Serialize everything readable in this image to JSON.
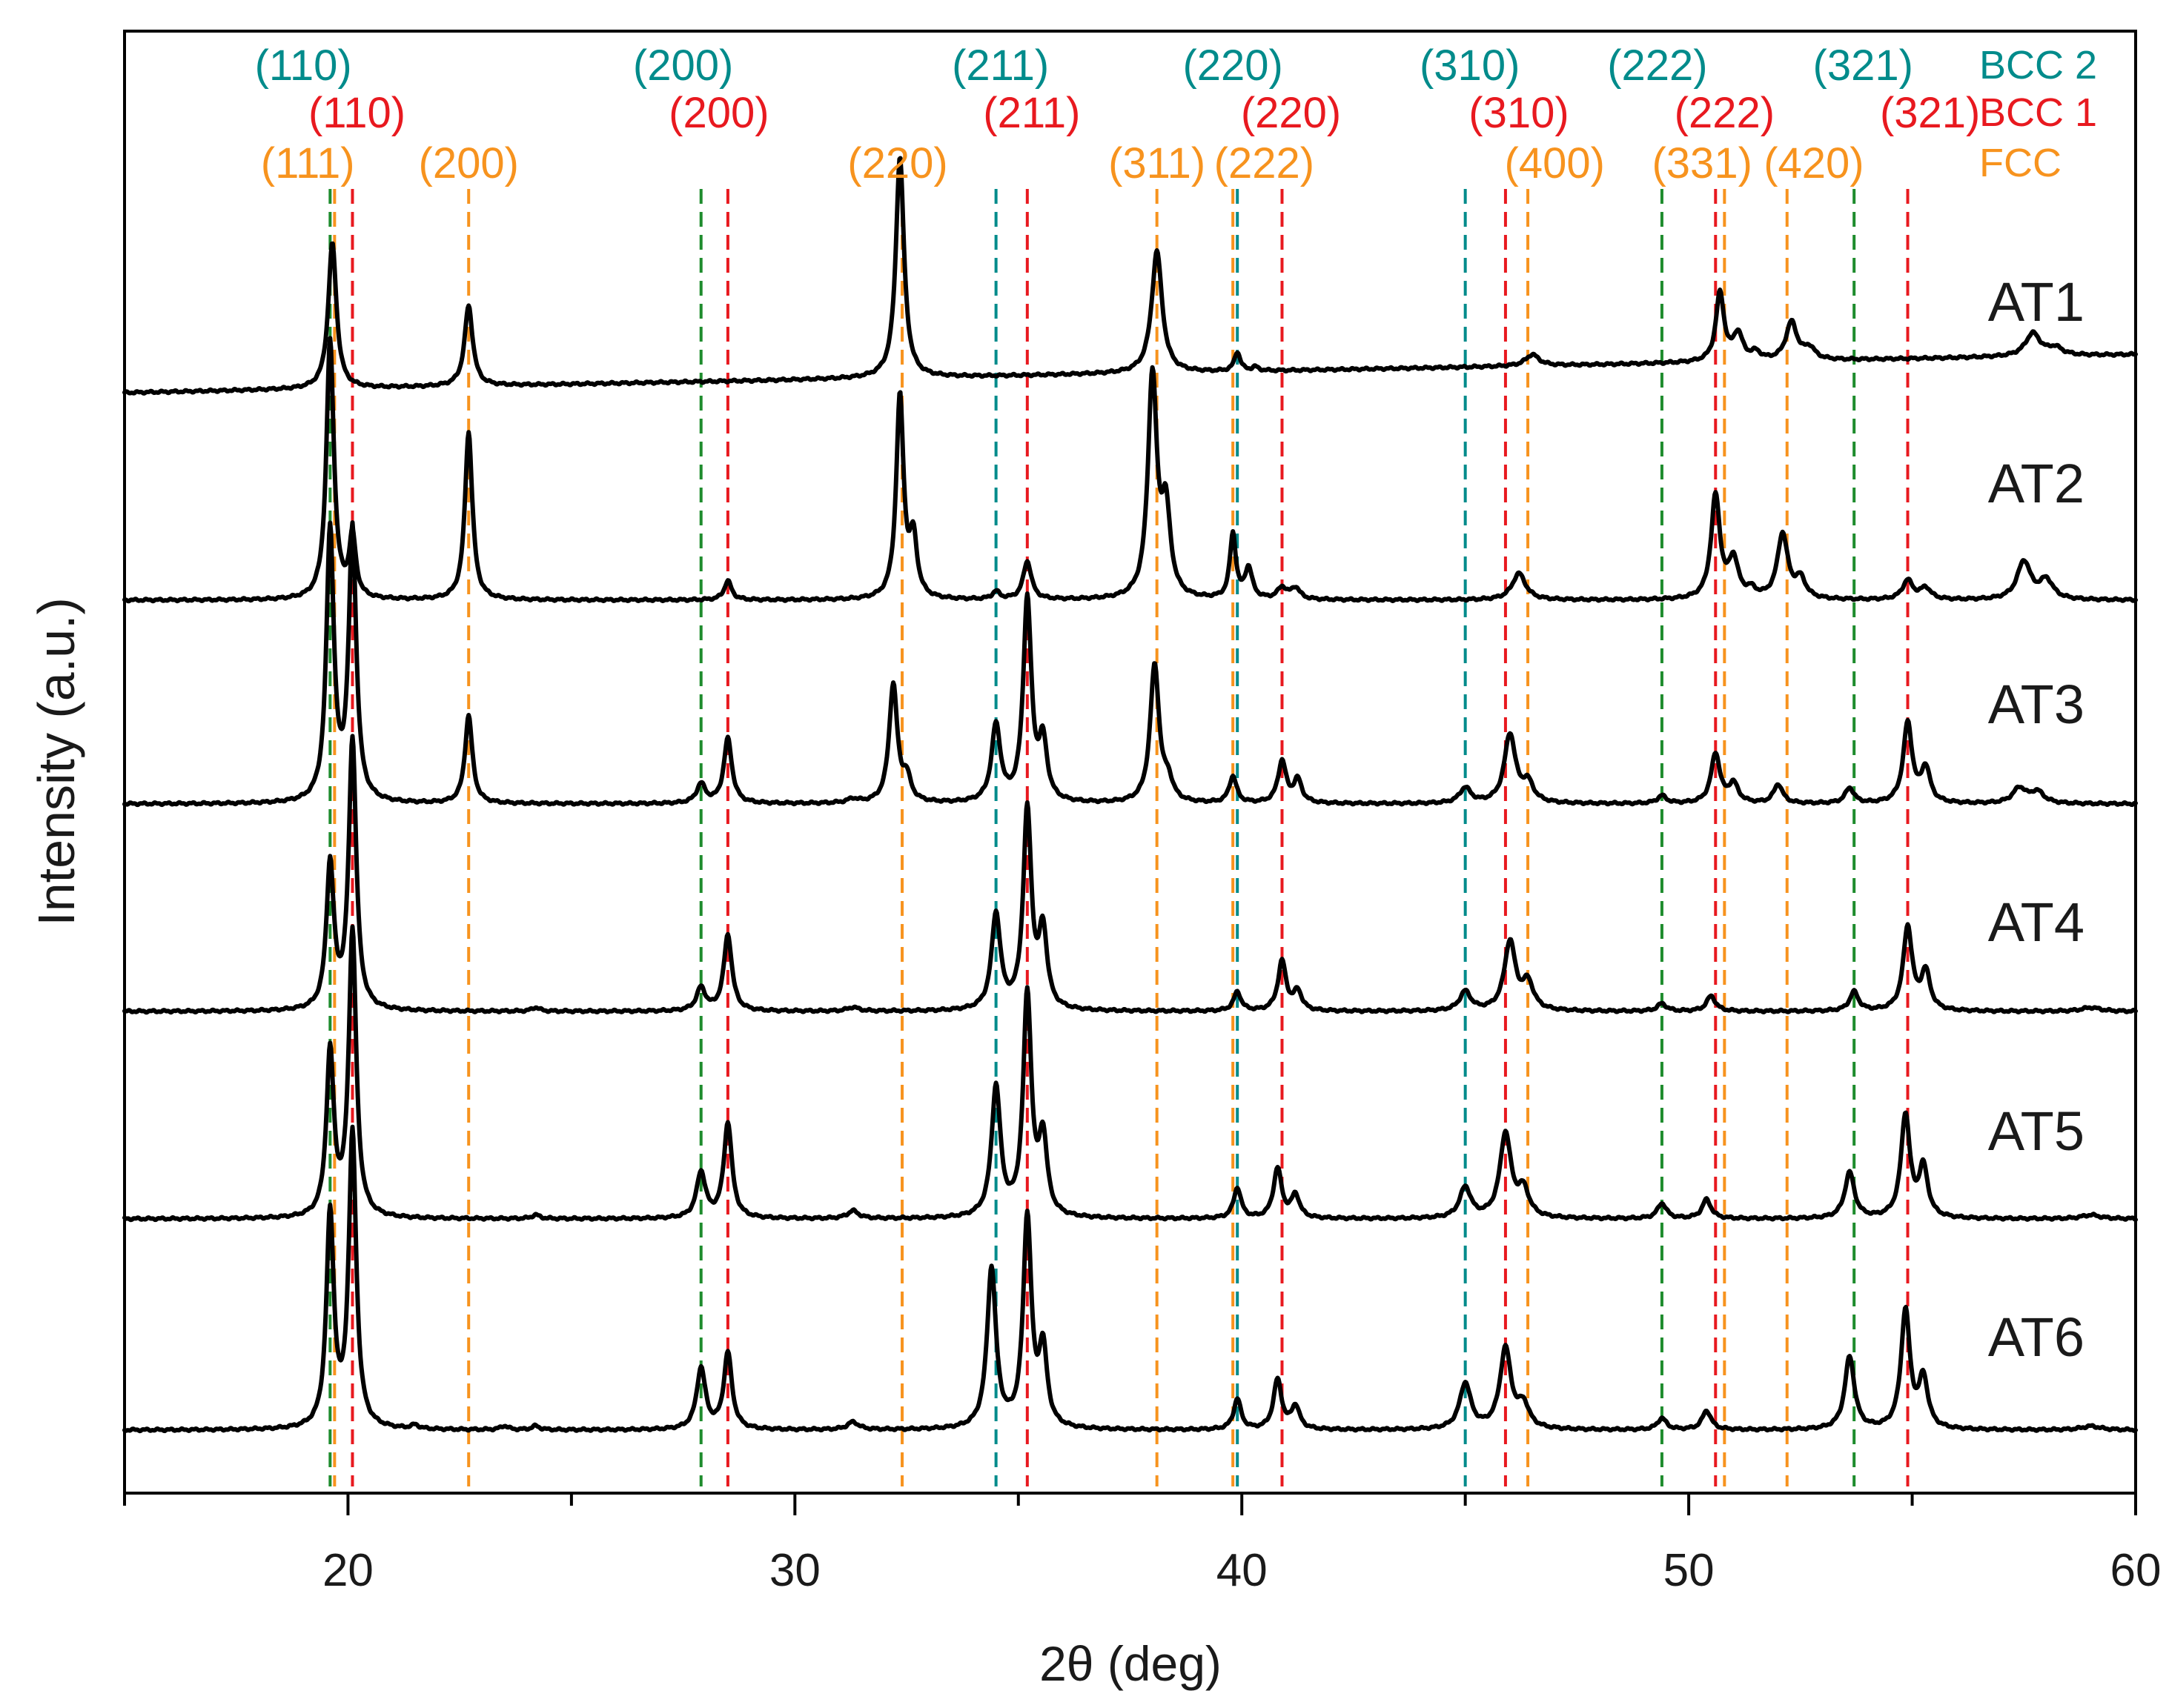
{
  "chart_data": {
    "type": "line",
    "title": "",
    "xlabel": "2θ (deg)",
    "ylabel": "Intensity (a.u.)",
    "xlim": [
      15,
      60
    ],
    "xticks": [
      20,
      30,
      40,
      50,
      60
    ],
    "xtick_labels": [
      "20",
      "30",
      "40",
      "50",
      "60"
    ],
    "grid": false,
    "legend": [
      {
        "name": "BCC 2",
        "color": "#008b8b"
      },
      {
        "name": "BCC 1",
        "color": "#e8191f"
      },
      {
        "name": "FCC",
        "color": "#f7931e"
      }
    ],
    "reference_lines": [
      {
        "phase": "BCC 2",
        "color": "#1e8c2d",
        "positions": [
          19.6,
          27.9,
          49.4,
          53.7
        ]
      },
      {
        "phase": "BCC 2",
        "color": "#008b8b",
        "positions": [
          34.5,
          39.9,
          45.0
        ]
      },
      {
        "phase": "BCC 1",
        "color": "#e8191f",
        "positions": [
          20.1,
          28.5,
          35.2,
          40.9,
          45.9,
          50.6,
          54.9
        ]
      },
      {
        "phase": "FCC",
        "color": "#f7931e",
        "positions": [
          19.7,
          22.7,
          32.4,
          38.1,
          39.8,
          46.4,
          50.8,
          52.2
        ]
      }
    ],
    "annotations": [
      {
        "text": "(110)",
        "phase": "BCC 2",
        "x": 19.0
      },
      {
        "text": "(200)",
        "phase": "BCC 2",
        "x": 27.5
      },
      {
        "text": "(211)",
        "phase": "BCC 2",
        "x": 34.6
      },
      {
        "text": "(220)",
        "phase": "BCC 2",
        "x": 39.8
      },
      {
        "text": "(310)",
        "phase": "BCC 2",
        "x": 45.1
      },
      {
        "text": "(222)",
        "phase": "BCC 2",
        "x": 49.3
      },
      {
        "text": "(321)",
        "phase": "BCC 2",
        "x": 53.9
      },
      {
        "text": "(110)",
        "phase": "BCC 1",
        "x": 20.2
      },
      {
        "text": "(200)",
        "phase": "BCC 1",
        "x": 28.3
      },
      {
        "text": "(211)",
        "phase": "BCC 1",
        "x": 35.3
      },
      {
        "text": "(220)",
        "phase": "BCC 1",
        "x": 41.1
      },
      {
        "text": "(310)",
        "phase": "BCC 1",
        "x": 46.2
      },
      {
        "text": "(222)",
        "phase": "BCC 1",
        "x": 50.8
      },
      {
        "text": "(321)",
        "phase": "BCC 1",
        "x": 55.4
      },
      {
        "text": "(111)",
        "phase": "FCC",
        "x": 19.1
      },
      {
        "text": "(200)",
        "phase": "FCC",
        "x": 22.7
      },
      {
        "text": "(220)",
        "phase": "FCC",
        "x": 32.3
      },
      {
        "text": "(311)",
        "phase": "FCC",
        "x": 38.1
      },
      {
        "text": "(222)",
        "phase": "FCC",
        "x": 40.5
      },
      {
        "text": "(400)",
        "phase": "FCC",
        "x": 47.0
      },
      {
        "text": "(331)",
        "phase": "FCC",
        "x": 50.3
      },
      {
        "text": "(420)",
        "phase": "FCC",
        "x": 52.8
      }
    ],
    "series": [
      {
        "name": "AT1",
        "baseline": 0.1,
        "noise": 0.002,
        "peaks": [
          [
            19.65,
            0.38,
            0.11
          ],
          [
            22.7,
            0.21,
            0.11
          ],
          [
            32.35,
            0.58,
            0.11
          ],
          [
            38.1,
            0.32,
            0.14
          ],
          [
            39.9,
            0.05,
            0.08
          ],
          [
            40.3,
            0.01,
            0.08
          ],
          [
            46.5,
            0.03,
            0.18
          ],
          [
            50.7,
            0.18,
            0.11
          ],
          [
            51.1,
            0.07,
            0.13
          ],
          [
            51.5,
            0.02,
            0.13
          ],
          [
            52.3,
            0.1,
            0.15
          ],
          [
            52.7,
            0.03,
            0.15
          ],
          [
            57.7,
            0.06,
            0.2
          ],
          [
            58.2,
            0.02,
            0.2
          ]
        ]
      },
      {
        "name": "AT2",
        "baseline": 0.0,
        "noise": 0.002,
        "peaks": [
          [
            19.6,
            0.68,
            0.1
          ],
          [
            20.1,
            0.16,
            0.09
          ],
          [
            22.7,
            0.44,
            0.1
          ],
          [
            28.5,
            0.05,
            0.1
          ],
          [
            32.35,
            0.53,
            0.1
          ],
          [
            32.65,
            0.15,
            0.1
          ],
          [
            34.5,
            0.02,
            0.1
          ],
          [
            35.2,
            0.1,
            0.11
          ],
          [
            38.0,
            0.58,
            0.12
          ],
          [
            38.3,
            0.22,
            0.12
          ],
          [
            39.8,
            0.17,
            0.08
          ],
          [
            40.15,
            0.08,
            0.1
          ],
          [
            40.9,
            0.03,
            0.12
          ],
          [
            41.2,
            0.03,
            0.12
          ],
          [
            46.2,
            0.07,
            0.18
          ],
          [
            50.6,
            0.27,
            0.12
          ],
          [
            51.0,
            0.1,
            0.13
          ],
          [
            51.4,
            0.02,
            0.13
          ],
          [
            52.1,
            0.17,
            0.14
          ],
          [
            52.5,
            0.05,
            0.14
          ],
          [
            54.9,
            0.05,
            0.14
          ],
          [
            55.3,
            0.03,
            0.14
          ],
          [
            57.5,
            0.1,
            0.18
          ],
          [
            58.0,
            0.05,
            0.18
          ]
        ]
      },
      {
        "name": "AT3",
        "baseline": 0.0,
        "noise": 0.002,
        "peaks": [
          [
            19.6,
            0.71,
            0.1
          ],
          [
            20.1,
            0.71,
            0.1
          ],
          [
            22.7,
            0.23,
            0.1
          ],
          [
            27.9,
            0.05,
            0.12
          ],
          [
            28.5,
            0.17,
            0.11
          ],
          [
            31.3,
            0.01,
            0.15
          ],
          [
            32.2,
            0.31,
            0.11
          ],
          [
            32.5,
            0.06,
            0.11
          ],
          [
            34.5,
            0.2,
            0.12
          ],
          [
            35.2,
            0.53,
            0.11
          ],
          [
            35.55,
            0.15,
            0.11
          ],
          [
            38.05,
            0.36,
            0.12
          ],
          [
            38.35,
            0.05,
            0.12
          ],
          [
            39.8,
            0.07,
            0.1
          ],
          [
            40.9,
            0.11,
            0.11
          ],
          [
            41.25,
            0.06,
            0.11
          ],
          [
            45.0,
            0.04,
            0.15
          ],
          [
            46.0,
            0.18,
            0.15
          ],
          [
            46.4,
            0.05,
            0.15
          ],
          [
            49.4,
            0.02,
            0.12
          ],
          [
            50.6,
            0.13,
            0.12
          ],
          [
            51.0,
            0.05,
            0.13
          ],
          [
            52.0,
            0.05,
            0.12
          ],
          [
            53.6,
            0.04,
            0.12
          ],
          [
            54.9,
            0.21,
            0.12
          ],
          [
            55.3,
            0.09,
            0.12
          ],
          [
            57.4,
            0.04,
            0.18
          ],
          [
            57.8,
            0.03,
            0.18
          ]
        ]
      },
      {
        "name": "AT4",
        "baseline": 0.0,
        "noise": 0.002,
        "peaks": [
          [
            19.6,
            0.38,
            0.1
          ],
          [
            20.1,
            0.71,
            0.1
          ],
          [
            24.2,
            0.01,
            0.1
          ],
          [
            27.9,
            0.06,
            0.12
          ],
          [
            28.5,
            0.2,
            0.11
          ],
          [
            31.3,
            0.01,
            0.15
          ],
          [
            34.5,
            0.25,
            0.12
          ],
          [
            35.2,
            0.52,
            0.11
          ],
          [
            35.55,
            0.2,
            0.11
          ],
          [
            39.9,
            0.05,
            0.1
          ],
          [
            40.9,
            0.13,
            0.11
          ],
          [
            41.25,
            0.05,
            0.11
          ],
          [
            45.0,
            0.05,
            0.15
          ],
          [
            46.0,
            0.18,
            0.15
          ],
          [
            46.4,
            0.07,
            0.15
          ],
          [
            49.4,
            0.02,
            0.12
          ],
          [
            50.5,
            0.04,
            0.12
          ],
          [
            53.7,
            0.05,
            0.12
          ],
          [
            54.9,
            0.22,
            0.12
          ],
          [
            55.3,
            0.1,
            0.12
          ],
          [
            59.0,
            0.01,
            0.25
          ]
        ]
      },
      {
        "name": "AT5",
        "baseline": 0.0,
        "noise": 0.002,
        "peaks": [
          [
            19.6,
            0.43,
            0.1
          ],
          [
            20.1,
            0.75,
            0.1
          ],
          [
            24.2,
            0.01,
            0.1
          ],
          [
            27.9,
            0.12,
            0.12
          ],
          [
            28.5,
            0.25,
            0.11
          ],
          [
            31.3,
            0.02,
            0.15
          ],
          [
            34.5,
            0.34,
            0.12
          ],
          [
            35.2,
            0.58,
            0.11
          ],
          [
            35.55,
            0.2,
            0.11
          ],
          [
            39.9,
            0.08,
            0.1
          ],
          [
            40.8,
            0.13,
            0.11
          ],
          [
            41.2,
            0.06,
            0.11
          ],
          [
            45.0,
            0.08,
            0.15
          ],
          [
            45.9,
            0.22,
            0.15
          ],
          [
            46.3,
            0.07,
            0.15
          ],
          [
            49.4,
            0.04,
            0.12
          ],
          [
            50.4,
            0.05,
            0.12
          ],
          [
            53.6,
            0.12,
            0.13
          ],
          [
            54.85,
            0.27,
            0.12
          ],
          [
            55.25,
            0.13,
            0.12
          ],
          [
            59.0,
            0.01,
            0.25
          ]
        ]
      },
      {
        "name": "AT6",
        "baseline": 0.0,
        "noise": 0.002,
        "peaks": [
          [
            19.6,
            0.56,
            0.1
          ],
          [
            20.1,
            0.77,
            0.1
          ],
          [
            21.5,
            0.01,
            0.1
          ],
          [
            23.5,
            0.01,
            0.1
          ],
          [
            24.2,
            0.01,
            0.1
          ],
          [
            27.9,
            0.16,
            0.12
          ],
          [
            28.5,
            0.2,
            0.11
          ],
          [
            31.3,
            0.02,
            0.15
          ],
          [
            34.4,
            0.42,
            0.12
          ],
          [
            35.2,
            0.55,
            0.11
          ],
          [
            35.55,
            0.2,
            0.11
          ],
          [
            39.9,
            0.08,
            0.1
          ],
          [
            40.8,
            0.13,
            0.11
          ],
          [
            41.2,
            0.06,
            0.11
          ],
          [
            45.0,
            0.12,
            0.15
          ],
          [
            45.9,
            0.21,
            0.15
          ],
          [
            46.3,
            0.06,
            0.15
          ],
          [
            49.4,
            0.03,
            0.12
          ],
          [
            50.4,
            0.05,
            0.12
          ],
          [
            53.6,
            0.19,
            0.13
          ],
          [
            54.85,
            0.31,
            0.12
          ],
          [
            55.25,
            0.13,
            0.12
          ],
          [
            59.0,
            0.01,
            0.25
          ]
        ]
      }
    ]
  }
}
